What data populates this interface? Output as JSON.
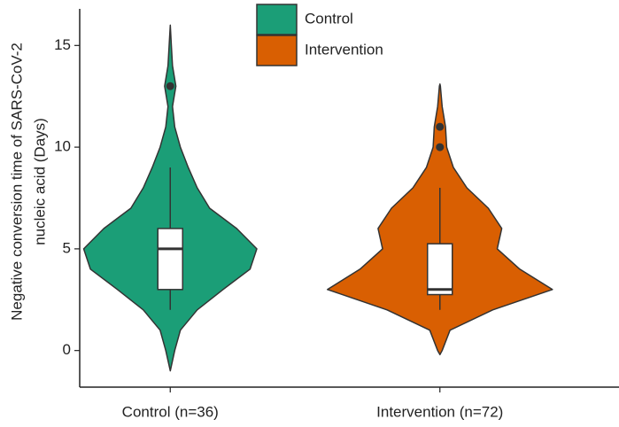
{
  "chart_data": {
    "type": "violin",
    "y_label": [
      "Negative conversion time of SARS-CoV-2",
      "nucleic acid (Days)"
    ],
    "categories": [
      "Control (n=36)",
      "Intervention (n=72)"
    ],
    "ylim": [
      -1.8,
      16.8
    ],
    "yticks": [
      0,
      5,
      10,
      15
    ],
    "legend_position": "top",
    "series": [
      {
        "name": "Control",
        "color": "#1b9e77",
        "density_y": [
          -1,
          0,
          1,
          2,
          3,
          4,
          5,
          6,
          7,
          8,
          9,
          10,
          11,
          12,
          13,
          14,
          15,
          16
        ],
        "density": [
          0,
          0.04,
          0.09,
          0.24,
          0.47,
          0.71,
          0.77,
          0.59,
          0.35,
          0.24,
          0.16,
          0.09,
          0.04,
          0.02,
          0.05,
          0.02,
          0.01,
          0
        ],
        "box": {
          "whisker_low": 2,
          "q1": 3,
          "median": 5,
          "q3": 6,
          "whisker_high": 9
        },
        "outliers": [
          13
        ]
      },
      {
        "name": "Intervention",
        "color": "#d95f02",
        "density_y": [
          -0.2,
          0,
          1,
          2,
          3,
          4,
          5,
          6,
          7,
          8,
          9,
          10,
          11,
          12,
          13,
          13.1
        ],
        "density": [
          0,
          0.02,
          0.09,
          0.47,
          1,
          0.71,
          0.51,
          0.55,
          0.43,
          0.24,
          0.12,
          0.06,
          0.05,
          0.02,
          0.004,
          0
        ],
        "box": {
          "whisker_low": 2,
          "q1": 2.75,
          "median": 3,
          "q3": 5.25,
          "whisker_high": 8
        },
        "outliers": [
          10,
          11
        ]
      }
    ]
  }
}
